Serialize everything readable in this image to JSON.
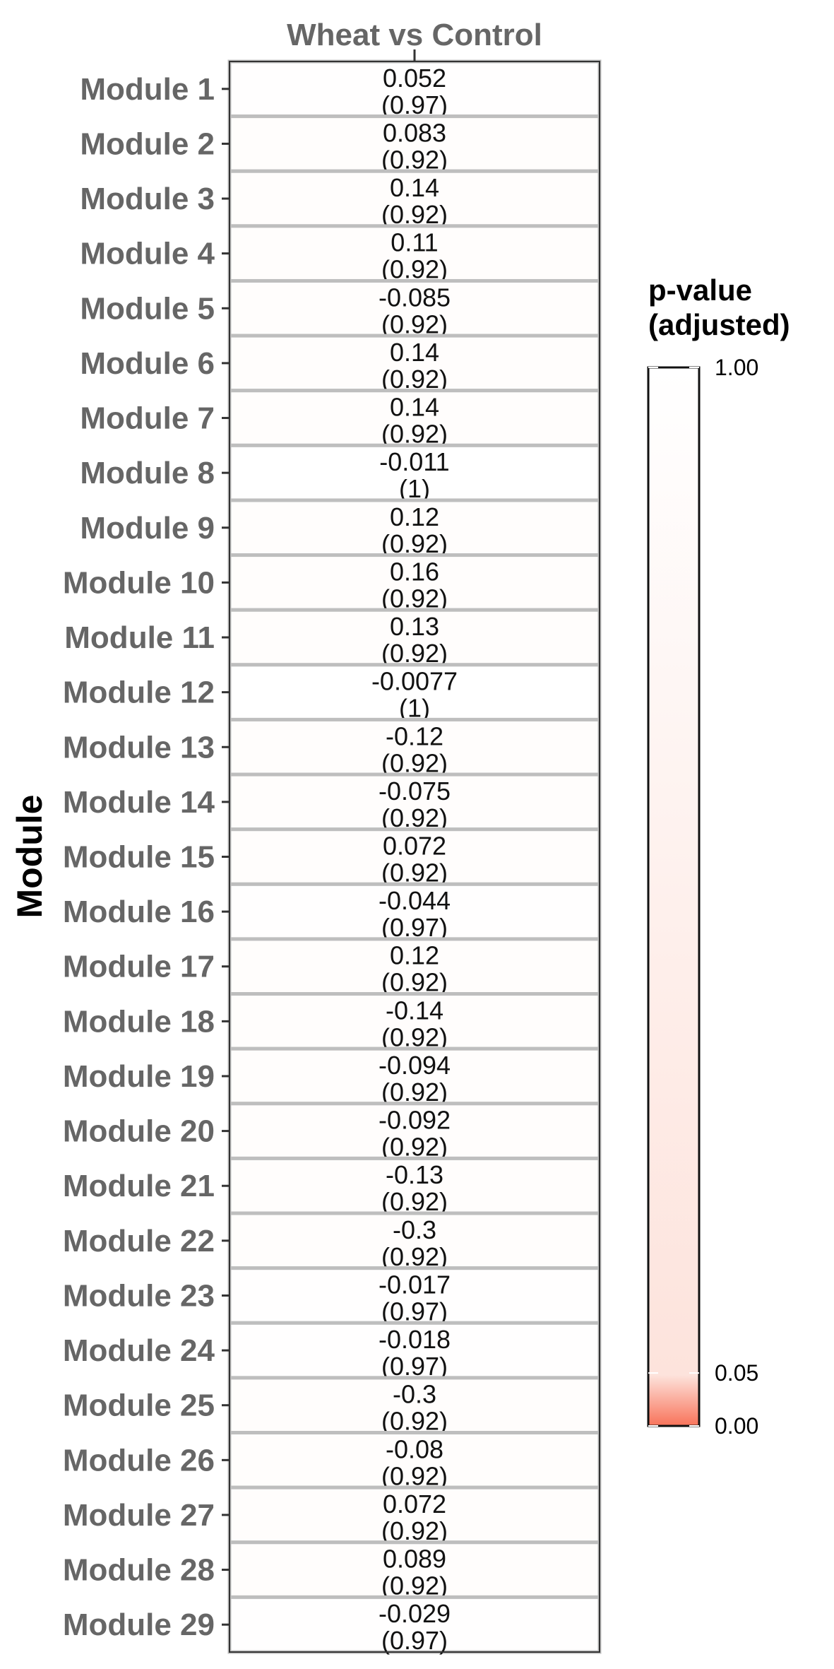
{
  "chart_data": {
    "type": "heatmap",
    "column_label": "Wheat vs Control",
    "ylabel": "Module",
    "rows": [
      {
        "label": "Module 1",
        "value": "0.052",
        "padj": "(0.97)",
        "p": 0.97
      },
      {
        "label": "Module 2",
        "value": "0.083",
        "padj": "(0.92)",
        "p": 0.92
      },
      {
        "label": "Module 3",
        "value": "0.14",
        "padj": "(0.92)",
        "p": 0.92
      },
      {
        "label": "Module 4",
        "value": "0.11",
        "padj": "(0.92)",
        "p": 0.92
      },
      {
        "label": "Module 5",
        "value": "-0.085",
        "padj": "(0.92)",
        "p": 0.92
      },
      {
        "label": "Module 6",
        "value": "0.14",
        "padj": "(0.92)",
        "p": 0.92
      },
      {
        "label": "Module 7",
        "value": "0.14",
        "padj": "(0.92)",
        "p": 0.92
      },
      {
        "label": "Module 8",
        "value": "-0.011",
        "padj": "(1)",
        "p": 1
      },
      {
        "label": "Module 9",
        "value": "0.12",
        "padj": "(0.92)",
        "p": 0.92
      },
      {
        "label": "Module 10",
        "value": "0.16",
        "padj": "(0.92)",
        "p": 0.92
      },
      {
        "label": "Module 11",
        "value": "0.13",
        "padj": "(0.92)",
        "p": 0.92
      },
      {
        "label": "Module 12",
        "value": "-0.0077",
        "padj": "(1)",
        "p": 1
      },
      {
        "label": "Module 13",
        "value": "-0.12",
        "padj": "(0.92)",
        "p": 0.92
      },
      {
        "label": "Module 14",
        "value": "-0.075",
        "padj": "(0.92)",
        "p": 0.92
      },
      {
        "label": "Module 15",
        "value": "0.072",
        "padj": "(0.92)",
        "p": 0.92
      },
      {
        "label": "Module 16",
        "value": "-0.044",
        "padj": "(0.97)",
        "p": 0.97
      },
      {
        "label": "Module 17",
        "value": "0.12",
        "padj": "(0.92)",
        "p": 0.92
      },
      {
        "label": "Module 18",
        "value": "-0.14",
        "padj": "(0.92)",
        "p": 0.92
      },
      {
        "label": "Module 19",
        "value": "-0.094",
        "padj": "(0.92)",
        "p": 0.92
      },
      {
        "label": "Module 20",
        "value": "-0.092",
        "padj": "(0.92)",
        "p": 0.92
      },
      {
        "label": "Module 21",
        "value": "-0.13",
        "padj": "(0.92)",
        "p": 0.92
      },
      {
        "label": "Module 22",
        "value": "-0.3",
        "padj": "(0.92)",
        "p": 0.92
      },
      {
        "label": "Module 23",
        "value": "-0.017",
        "padj": "(0.97)",
        "p": 0.97
      },
      {
        "label": "Module 24",
        "value": "-0.018",
        "padj": "(0.97)",
        "p": 0.97
      },
      {
        "label": "Module 25",
        "value": "-0.3",
        "padj": "(0.92)",
        "p": 0.92
      },
      {
        "label": "Module 26",
        "value": "-0.08",
        "padj": "(0.92)",
        "p": 0.92
      },
      {
        "label": "Module 27",
        "value": "0.072",
        "padj": "(0.92)",
        "p": 0.92
      },
      {
        "label": "Module 28",
        "value": "0.089",
        "padj": "(0.92)",
        "p": 0.92
      },
      {
        "label": "Module 29",
        "value": "-0.029",
        "padj": "(0.97)",
        "p": 0.97
      }
    ],
    "legend": {
      "title_line1": "p-value",
      "title_line2": "(adjusted)",
      "ticks": [
        {
          "label": "1.00",
          "value": 1.0
        },
        {
          "label": "0.05",
          "value": 0.05
        },
        {
          "label": "0.00",
          "value": 0.0
        }
      ],
      "color_low": "#f8735a",
      "color_mid": "#fde3dc",
      "color_high": "#ffffff"
    },
    "grid_color": "#bebebe",
    "panel_border_color": "#333333"
  }
}
